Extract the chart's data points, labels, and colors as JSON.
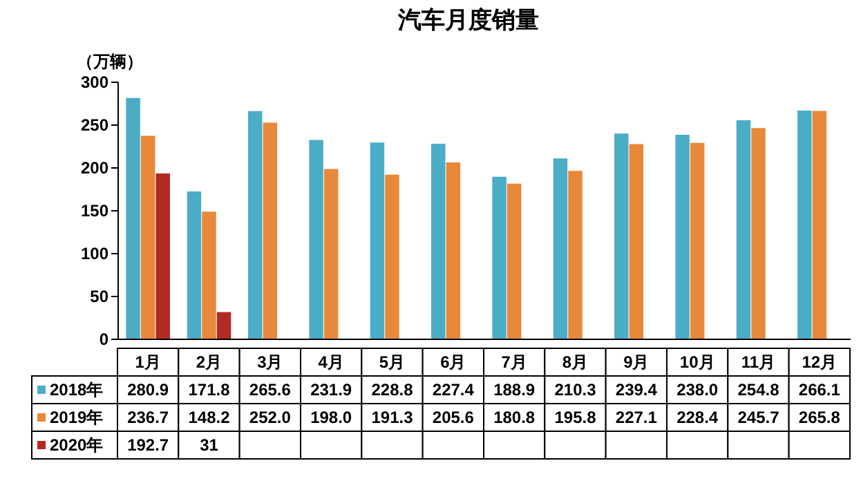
{
  "chart_data": {
    "type": "bar",
    "title": "汽车月度销量",
    "ylabel": "（万辆）",
    "categories": [
      "1月",
      "2月",
      "3月",
      "4月",
      "5月",
      "6月",
      "7月",
      "8月",
      "9月",
      "10月",
      "11月",
      "12月"
    ],
    "series": [
      {
        "name": "2018年",
        "color": "#4bacc6",
        "values": [
          280.9,
          171.8,
          265.6,
          231.9,
          228.8,
          227.4,
          188.9,
          210.3,
          239.4,
          238.0,
          254.8,
          266.1
        ],
        "value_labels": [
          "280.9",
          "171.8",
          "265.6",
          "231.9",
          "228.8",
          "227.4",
          "188.9",
          "210.3",
          "239.4",
          "238.0",
          "254.8",
          "266.1"
        ]
      },
      {
        "name": "2019年",
        "color": "#e8883a",
        "values": [
          236.7,
          148.2,
          252.0,
          198.0,
          191.3,
          205.6,
          180.8,
          195.8,
          227.1,
          228.4,
          245.7,
          265.8
        ],
        "value_labels": [
          "236.7",
          "148.2",
          "252.0",
          "198.0",
          "191.3",
          "205.6",
          "180.8",
          "195.8",
          "227.1",
          "228.4",
          "245.7",
          "265.8"
        ]
      },
      {
        "name": "2020年",
        "color": "#b32a25",
        "values": [
          192.7,
          31,
          null,
          null,
          null,
          null,
          null,
          null,
          null,
          null,
          null,
          null
        ],
        "value_labels": [
          "192.7",
          "31",
          null,
          null,
          null,
          null,
          null,
          null,
          null,
          null,
          null,
          null
        ]
      }
    ],
    "ylim": [
      0,
      300
    ],
    "yticks": [
      0,
      50,
      100,
      150,
      200,
      250,
      300
    ],
    "legend": "bottom"
  }
}
